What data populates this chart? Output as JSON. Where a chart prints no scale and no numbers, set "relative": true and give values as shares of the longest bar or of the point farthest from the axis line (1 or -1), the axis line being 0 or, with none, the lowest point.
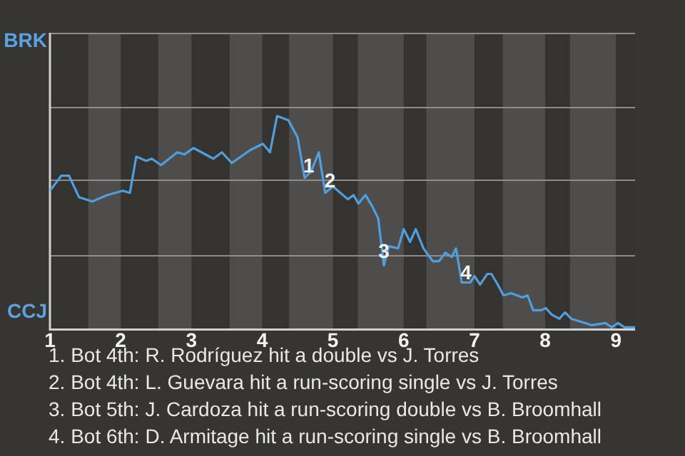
{
  "chart_data": {
    "type": "line",
    "relative": true,
    "ref_lines": [
      {
        "axis": "y",
        "value": 0.35,
        "color": "#8c8c8c"
      },
      {
        "axis": "y",
        "value": 0.7,
        "color": "#8c8c8c"
      },
      {
        "axis": "y",
        "value": 1.04,
        "color": "#8c8c8c"
      },
      {
        "axis": "y",
        "value": 1.39,
        "color": "#8c8c8c"
      }
    ],
    "legend": false,
    "marker": "none",
    "line_style": "solid",
    "xlim": [
      1,
      9.27
    ],
    "xticks": [
      1,
      2,
      3,
      4,
      5,
      6,
      7,
      8,
      9
    ],
    "bands": [
      {
        "axis": "x",
        "from": 1.54,
        "to": 2,
        "color": "#4e4d4b"
      },
      {
        "axis": "x",
        "from": 2.53,
        "to": 3,
        "color": "#4e4d4b"
      },
      {
        "axis": "x",
        "from": 3.54,
        "to": 4,
        "color": "#4e4d4b"
      },
      {
        "axis": "x",
        "from": 4.38,
        "to": 5,
        "color": "#4e4d4b"
      },
      {
        "axis": "x",
        "from": 5.35,
        "to": 6,
        "color": "#4e4d4b"
      },
      {
        "axis": "x",
        "from": 6.32,
        "to": 7,
        "color": "#4e4d4b"
      },
      {
        "axis": "x",
        "from": 7.4,
        "to": 8,
        "color": "#4e4d4b"
      },
      {
        "axis": "x",
        "from": 8.35,
        "to": 9,
        "color": "#4e4d4b"
      }
    ],
    "series": [
      {
        "color": "#4f9fdf",
        "x": [
          1,
          1.16,
          1.27,
          1.41,
          1.6,
          1.81,
          2.03,
          2.13,
          2.22,
          2.36,
          2.44,
          2.57,
          2.8,
          2.9,
          3.03,
          3.31,
          3.43,
          3.57,
          3.83,
          4.01,
          4.11,
          4.21,
          4.37,
          4.5,
          4.6,
          4.69,
          4.8,
          4.89,
          5,
          5.21,
          5.29,
          5.36,
          5.46,
          5.55,
          5.64,
          5.72,
          5.79,
          5.92,
          6,
          6.09,
          6.17,
          6.28,
          6.41,
          6.5,
          6.59,
          6.68,
          6.74,
          6.82,
          6.94,
          7,
          7.08,
          7.18,
          7.24,
          7.33,
          7.41,
          7.52,
          7.68,
          7.75,
          7.83,
          7.94,
          8.01,
          8.09,
          8.2,
          8.28,
          8.37,
          8.57,
          8.66,
          8.85,
          8.94,
          9.03,
          9.12,
          9.27
        ],
        "values": [
          0.65,
          0.72,
          0.72,
          0.62,
          0.6,
          0.63,
          0.65,
          0.64,
          0.81,
          0.79,
          0.8,
          0.77,
          0.83,
          0.82,
          0.85,
          0.8,
          0.83,
          0.78,
          0.84,
          0.87,
          0.83,
          1,
          0.98,
          0.9,
          0.71,
          0.74,
          0.83,
          0.64,
          0.67,
          0.61,
          0.63,
          0.59,
          0.63,
          0.58,
          0.52,
          0.3,
          0.39,
          0.38,
          0.47,
          0.41,
          0.47,
          0.38,
          0.32,
          0.32,
          0.36,
          0.34,
          0.38,
          0.22,
          0.22,
          0.25,
          0.21,
          0.26,
          0.26,
          0.21,
          0.16,
          0.17,
          0.15,
          0.16,
          0.09,
          0.09,
          0.1,
          0.07,
          0.05,
          0.08,
          0.05,
          0.03,
          0.02,
          0.03,
          0.01,
          0.03,
          0.01,
          0.01
        ]
      }
    ],
    "annotations": [
      "BRK",
      "CCJ",
      {
        "text": "1",
        "x": 4.66,
        "y": 0.76
      },
      {
        "text": "2",
        "x": 4.96,
        "y": 0.69
      },
      {
        "text": "3",
        "x": 5.72,
        "y": 0.36
      },
      {
        "text": "4",
        "x": 6.88,
        "y": 0.26
      },
      "1. Bot 4th: R. Rodríguez hit a double vs J. Torres",
      "2. Bot 4th: L. Guevara hit a run-scoring single vs J. Torres",
      "3. Bot 5th: J. Cardoza hit a run-scoring double vs B. Broomhall",
      "4. Bot 6th: D. Armitage hit a run-scoring single vs B. Broomhall"
    ]
  }
}
